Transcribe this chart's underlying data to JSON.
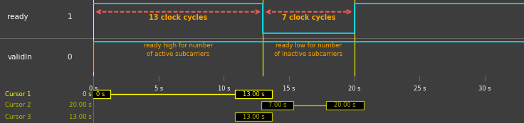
{
  "fig_width": 7.36,
  "fig_height": 1.74,
  "dpi": 100,
  "panel_bg": "#3d3d3d",
  "signal_area_bg": "#000000",
  "cursor_panel_bg": "#4a4a4a",
  "signal_color": "#00e5ff",
  "white_color": "#ffffff",
  "grid_color": "#666666",
  "orange_color": "#ffa500",
  "arrow_color": "#ff5555",
  "yellow_bright": "#ffff00",
  "yellow_dim": "#b8b800",
  "signal_names": [
    "ready",
    "validIn"
  ],
  "signal_values": [
    "1",
    "0"
  ],
  "x_min": 0,
  "x_max": 33,
  "x_ticks": [
    0,
    5,
    10,
    15,
    20,
    25,
    30
  ],
  "x_tick_labels": [
    "0 s",
    "5 s",
    "10 s",
    "15 s",
    "20 s",
    "25 s",
    "30 s"
  ],
  "label1_text": "13 clock cycles",
  "label2_text": "7 clock cycles",
  "annot1_text": "ready high for number\nof active subcarriers",
  "annot2_text": "ready low for number\nof inactive subcarriers",
  "cursor1_label": "Cursor 1",
  "cursor1_val": "0 s",
  "cursor1_box1": "0 s",
  "cursor1_box2": "13.00 s",
  "cursor2_label": "Cursor 2",
  "cursor2_val": "20.00 s",
  "cursor2_box1": "7.00 s",
  "cursor2_box2": "20.00 s",
  "cursor3_label": "Cursor 3",
  "cursor3_val": "13.00 s",
  "cursor3_box1": "13.00 s"
}
